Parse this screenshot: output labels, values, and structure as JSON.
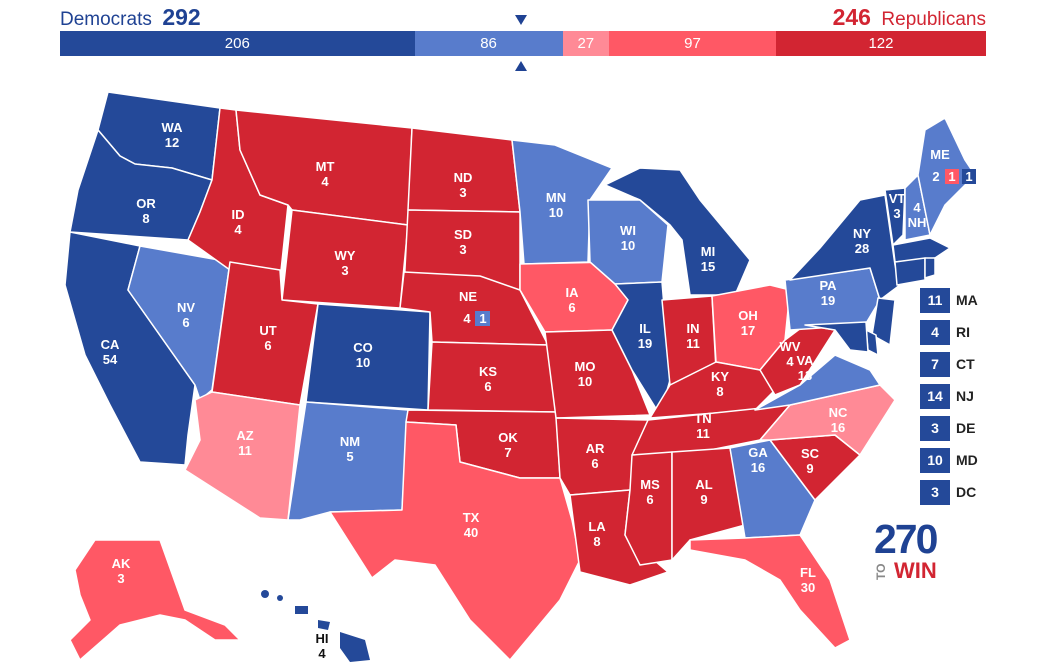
{
  "header": {
    "dem_label": "Democrats",
    "dem_total": "292",
    "rep_total": "246",
    "rep_label": "Republicans"
  },
  "colors": {
    "safe_dem": "#244999",
    "lean_dem": "#587ccc",
    "tossup_rep": "#ff8a96",
    "lean_rep": "#ff5865",
    "safe_rep": "#d22532"
  },
  "bar": [
    {
      "label": "206",
      "votes": 206,
      "color": "#244999"
    },
    {
      "label": "86",
      "votes": 86,
      "color": "#587ccc"
    },
    {
      "label": "27",
      "votes": 27,
      "color": "#ff8a96"
    },
    {
      "label": "97",
      "votes": 97,
      "color": "#ff5865"
    },
    {
      "label": "122",
      "votes": 122,
      "color": "#d22532"
    }
  ],
  "states": {
    "WA": {
      "abbr": "WA",
      "ev": "12"
    },
    "OR": {
      "abbr": "OR",
      "ev": "8"
    },
    "CA": {
      "abbr": "CA",
      "ev": "54"
    },
    "NV": {
      "abbr": "NV",
      "ev": "6"
    },
    "ID": {
      "abbr": "ID",
      "ev": "4"
    },
    "MT": {
      "abbr": "MT",
      "ev": "4"
    },
    "WY": {
      "abbr": "WY",
      "ev": "3"
    },
    "UT": {
      "abbr": "UT",
      "ev": "6"
    },
    "AZ": {
      "abbr": "AZ",
      "ev": "11"
    },
    "CO": {
      "abbr": "CO",
      "ev": "10"
    },
    "NM": {
      "abbr": "NM",
      "ev": "5"
    },
    "ND": {
      "abbr": "ND",
      "ev": "3"
    },
    "SD": {
      "abbr": "SD",
      "ev": "3"
    },
    "NE": {
      "abbr": "NE",
      "ev": "4",
      "ev2": "1"
    },
    "KS": {
      "abbr": "KS",
      "ev": "6"
    },
    "OK": {
      "abbr": "OK",
      "ev": "7"
    },
    "TX": {
      "abbr": "TX",
      "ev": "40"
    },
    "MN": {
      "abbr": "MN",
      "ev": "10"
    },
    "IA": {
      "abbr": "IA",
      "ev": "6"
    },
    "MO": {
      "abbr": "MO",
      "ev": "10"
    },
    "AR": {
      "abbr": "AR",
      "ev": "6"
    },
    "LA": {
      "abbr": "LA",
      "ev": "8"
    },
    "WI": {
      "abbr": "WI",
      "ev": "10"
    },
    "IL": {
      "abbr": "IL",
      "ev": "19"
    },
    "MI": {
      "abbr": "MI",
      "ev": "15"
    },
    "IN": {
      "abbr": "IN",
      "ev": "11"
    },
    "OH": {
      "abbr": "OH",
      "ev": "17"
    },
    "KY": {
      "abbr": "KY",
      "ev": "8"
    },
    "TN": {
      "abbr": "TN",
      "ev": "11"
    },
    "MS": {
      "abbr": "MS",
      "ev": "6"
    },
    "AL": {
      "abbr": "AL",
      "ev": "9"
    },
    "GA": {
      "abbr": "GA",
      "ev": "16"
    },
    "FL": {
      "abbr": "FL",
      "ev": "30"
    },
    "SC": {
      "abbr": "SC",
      "ev": "9"
    },
    "NC": {
      "abbr": "NC",
      "ev": "16"
    },
    "VA": {
      "abbr": "VA",
      "ev": "13"
    },
    "WV": {
      "abbr": "WV",
      "ev": "4"
    },
    "PA": {
      "abbr": "PA",
      "ev": "19"
    },
    "NY": {
      "abbr": "NY",
      "ev": "28"
    },
    "VT": {
      "abbr": "VT",
      "ev": "3"
    },
    "NH": {
      "abbr": "NH",
      "ev": "4"
    },
    "ME": {
      "abbr": "ME",
      "ev": "2",
      "ev2": "1",
      "ev3": "1"
    },
    "AK": {
      "abbr": "AK",
      "ev": "3"
    },
    "HI": {
      "abbr": "HI",
      "ev": "4"
    }
  },
  "small_states": [
    {
      "ev": "11",
      "abbr": "MA"
    },
    {
      "ev": "4",
      "abbr": "RI"
    },
    {
      "ev": "7",
      "abbr": "CT"
    },
    {
      "ev": "14",
      "abbr": "NJ"
    },
    {
      "ev": "3",
      "abbr": "DE"
    },
    {
      "ev": "10",
      "abbr": "MD"
    },
    {
      "ev": "3",
      "abbr": "DC"
    }
  ],
  "logo": {
    "number": "270",
    "to": "TO",
    "win": "WIN"
  }
}
